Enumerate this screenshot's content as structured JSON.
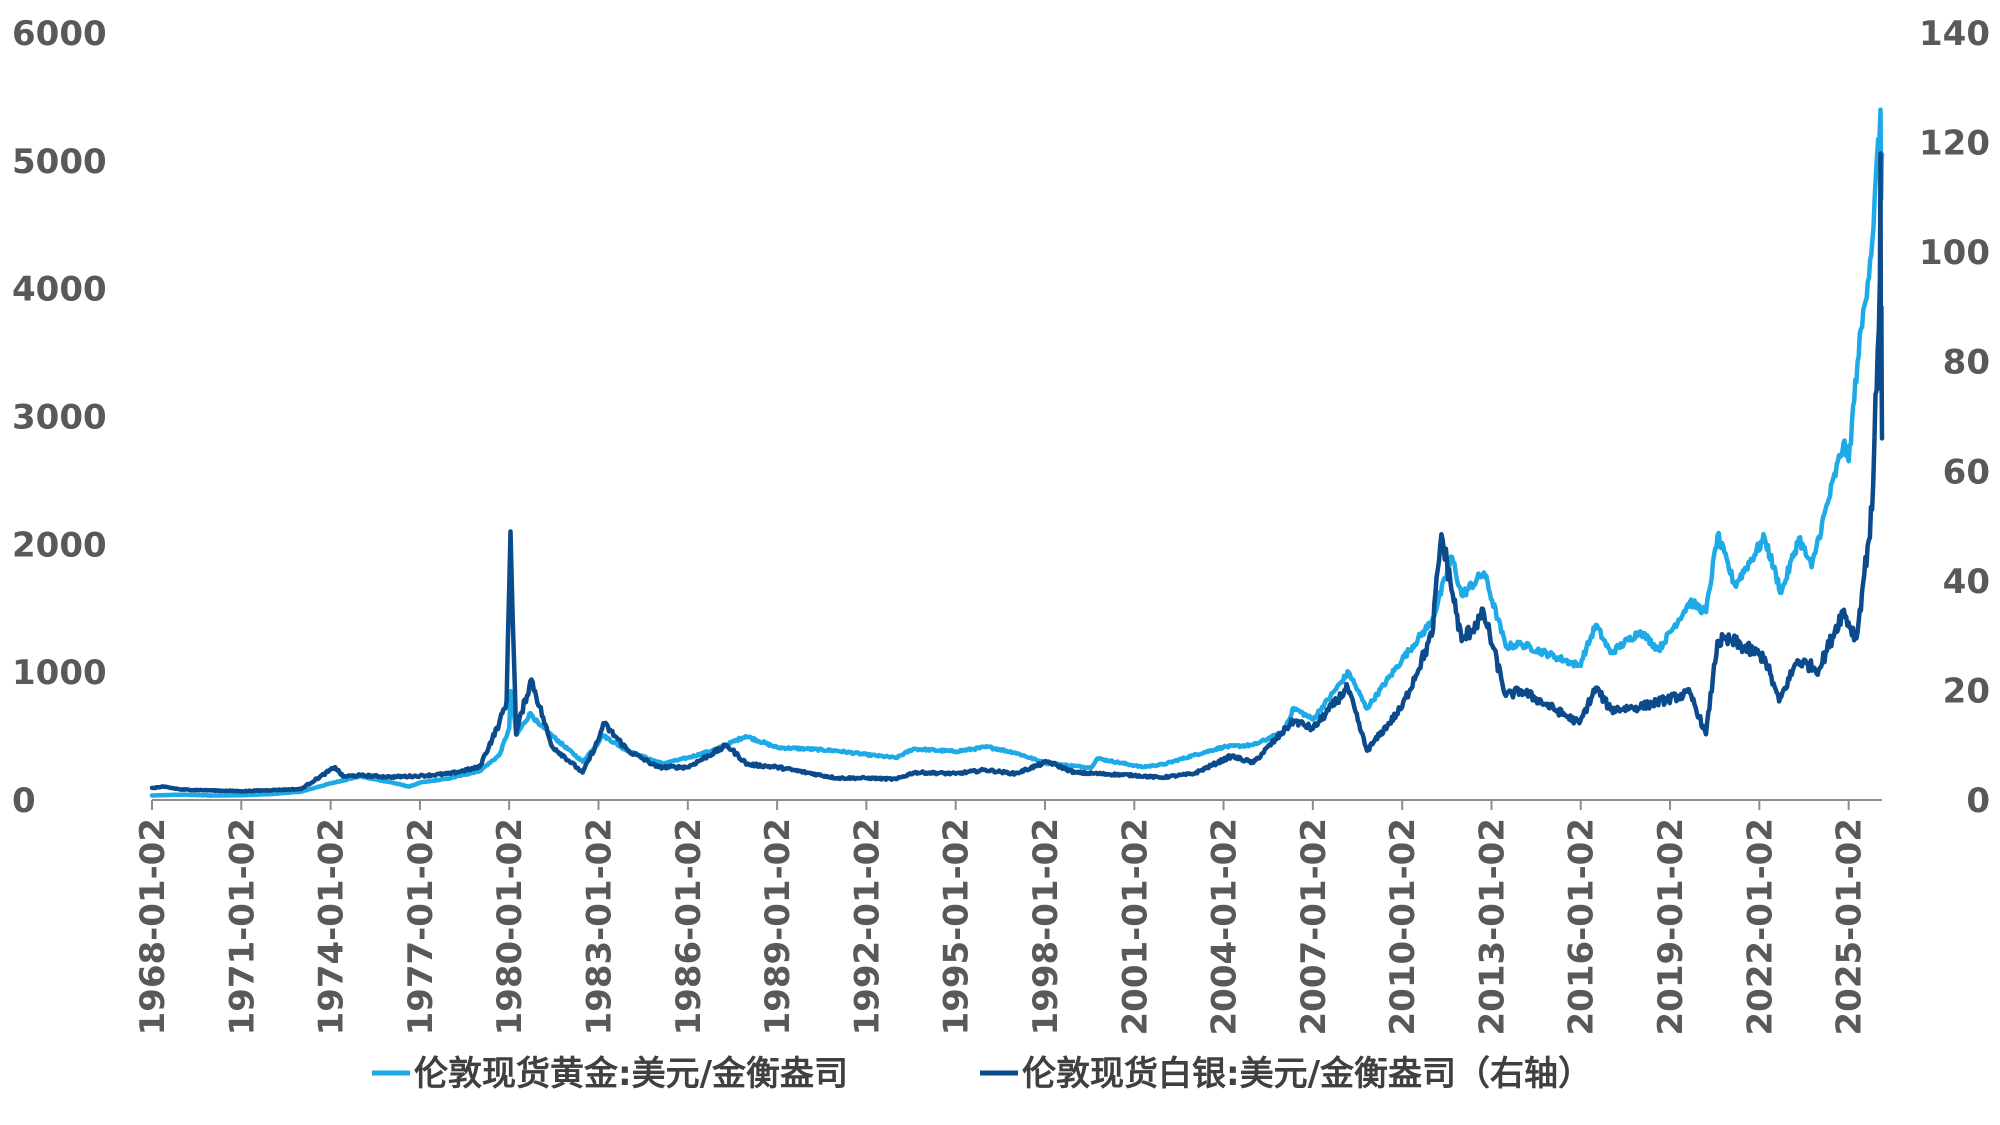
{
  "chart_data": {
    "type": "line",
    "x_type": "date",
    "x_ticks": [
      "1968-01-02",
      "1971-01-02",
      "1974-01-02",
      "1977-01-02",
      "1980-01-02",
      "1983-01-02",
      "1986-01-02",
      "1989-01-02",
      "1992-01-02",
      "1995-01-02",
      "1998-01-02",
      "2001-01-02",
      "2004-01-02",
      "2007-01-02",
      "2010-01-02",
      "2013-01-02",
      "2016-01-02",
      "2019-01-02",
      "2022-01-02",
      "2025-01-02"
    ],
    "xlim": [
      "1968-01-02",
      "2026-02-15"
    ],
    "ylim_left": [
      0,
      6000
    ],
    "ylim_right": [
      0,
      140
    ],
    "y_ticks_left": [
      0,
      1000,
      2000,
      3000,
      4000,
      5000,
      6000
    ],
    "y_ticks_right": [
      0,
      20,
      40,
      60,
      80,
      100,
      120,
      140
    ],
    "grid": false,
    "legend_position": "bottom",
    "series": [
      {
        "name": "伦敦现货黄金:美元/金衡盎司",
        "axis": "left",
        "color": "#1EAAE6",
        "points": [
          [
            "1968-01-02",
            35
          ],
          [
            "1969-01-02",
            42
          ],
          [
            "1970-01-02",
            35
          ],
          [
            "1971-01-02",
            37
          ],
          [
            "1972-01-02",
            46
          ],
          [
            "1973-01-02",
            65
          ],
          [
            "1974-01-02",
            130
          ],
          [
            "1974-12-30",
            186
          ],
          [
            "1975-06-02",
            165
          ],
          [
            "1976-01-02",
            140
          ],
          [
            "1976-08-25",
            105
          ],
          [
            "1977-01-02",
            135
          ],
          [
            "1978-01-02",
            170
          ],
          [
            "1979-01-02",
            226
          ],
          [
            "1979-09-03",
            350
          ],
          [
            "1980-01-02",
            560
          ],
          [
            "1980-01-21",
            850
          ],
          [
            "1980-04-01",
            510
          ],
          [
            "1980-09-20",
            680
          ],
          [
            "1981-01-02",
            590
          ],
          [
            "1982-06-21",
            300
          ],
          [
            "1983-01-02",
            450
          ],
          [
            "1983-02-15",
            510
          ],
          [
            "1984-01-02",
            380
          ],
          [
            "1985-02-25",
            285
          ],
          [
            "1986-01-02",
            330
          ],
          [
            "1987-01-02",
            400
          ],
          [
            "1987-12-14",
            500
          ],
          [
            "1989-01-02",
            410
          ],
          [
            "1990-01-02",
            400
          ],
          [
            "1991-01-02",
            385
          ],
          [
            "1992-01-02",
            355
          ],
          [
            "1993-01-02",
            330
          ],
          [
            "1993-08-01",
            400
          ],
          [
            "1995-01-02",
            380
          ],
          [
            "1996-02-01",
            415
          ],
          [
            "1997-01-02",
            370
          ],
          [
            "1998-01-02",
            290
          ],
          [
            "1999-07-20",
            253
          ],
          [
            "1999-10-05",
            325
          ],
          [
            "2001-01-02",
            270
          ],
          [
            "2001-04-02",
            258
          ],
          [
            "2002-01-02",
            280
          ],
          [
            "2003-01-02",
            350
          ],
          [
            "2004-01-02",
            415
          ],
          [
            "2005-01-02",
            430
          ],
          [
            "2006-01-02",
            530
          ],
          [
            "2006-05-12",
            720
          ],
          [
            "2007-01-02",
            630
          ],
          [
            "2008-03-17",
            1000
          ],
          [
            "2008-10-24",
            715
          ],
          [
            "2010-01-02",
            1100
          ],
          [
            "2011-01-02",
            1400
          ],
          [
            "2011-09-06",
            1900
          ],
          [
            "2012-01-02",
            1600
          ],
          [
            "2012-10-02",
            1780
          ],
          [
            "2013-06-28",
            1200
          ],
          [
            "2014-01-02",
            1220
          ],
          [
            "2015-12-17",
            1050
          ],
          [
            "2016-07-06",
            1370
          ],
          [
            "2017-01-02",
            1150
          ],
          [
            "2018-01-02",
            1320
          ],
          [
            "2018-08-16",
            1175
          ],
          [
            "2019-09-04",
            1550
          ],
          [
            "2020-03-19",
            1470
          ],
          [
            "2020-08-07",
            2070
          ],
          [
            "2021-03-08",
            1680
          ],
          [
            "2022-03-08",
            2050
          ],
          [
            "2022-09-28",
            1620
          ],
          [
            "2023-05-04",
            2050
          ],
          [
            "2023-10-05",
            1820
          ],
          [
            "2024-01-02",
            2060
          ],
          [
            "2024-10-30",
            2790
          ],
          [
            "2025-01-02",
            2650
          ],
          [
            "2025-04-21",
            3430
          ],
          [
            "2025-10-20",
            4380
          ],
          [
            "2026-01-28",
            5400
          ],
          [
            "2026-02-05",
            4700
          ],
          [
            "2026-02-15",
            5050
          ]
        ]
      },
      {
        "name": "伦敦现货白银:美元/金衡盎司（右轴）",
        "axis": "right",
        "color": "#0B4A8B",
        "points": [
          [
            "1968-01-02",
            2.2
          ],
          [
            "1968-06-02",
            2.4
          ],
          [
            "1969-01-02",
            1.9
          ],
          [
            "1971-01-02",
            1.6
          ],
          [
            "1973-01-02",
            2.0
          ],
          [
            "1974-02-26",
            6.0
          ],
          [
            "1974-06-02",
            4.3
          ],
          [
            "1975-01-02",
            4.5
          ],
          [
            "1976-01-02",
            4.2
          ],
          [
            "1977-01-02",
            4.4
          ],
          [
            "1978-01-02",
            4.8
          ],
          [
            "1979-01-02",
            6.0
          ],
          [
            "1979-09-01",
            14.0
          ],
          [
            "1979-12-01",
            18.0
          ],
          [
            "1980-01-18",
            49.0
          ],
          [
            "1980-03-27",
            12.0
          ],
          [
            "1980-06-02",
            16.0
          ],
          [
            "1980-10-02",
            22.0
          ],
          [
            "1981-06-02",
            10.0
          ],
          [
            "1982-06-21",
            5.0
          ],
          [
            "1983-01-02",
            11.0
          ],
          [
            "1983-03-02",
            14.0
          ],
          [
            "1984-01-02",
            9.0
          ],
          [
            "1985-01-02",
            6.0
          ],
          [
            "1986-01-02",
            6.0
          ],
          [
            "1987-04-27",
            10.0
          ],
          [
            "1988-01-02",
            6.5
          ],
          [
            "1989-01-02",
            6.0
          ],
          [
            "1990-01-02",
            5.0
          ],
          [
            "1991-01-02",
            4.0
          ],
          [
            "1992-01-02",
            4.0
          ],
          [
            "1993-01-02",
            3.8
          ],
          [
            "1993-08-02",
            5.0
          ],
          [
            "1994-01-02",
            5.0
          ],
          [
            "1995-01-02",
            4.8
          ],
          [
            "1996-01-02",
            5.5
          ],
          [
            "1997-01-02",
            4.8
          ],
          [
            "1998-02-05",
            7.0
          ],
          [
            "1999-01-02",
            5.0
          ],
          [
            "2001-01-02",
            4.5
          ],
          [
            "2001-11-20",
            4.1
          ],
          [
            "2003-01-02",
            4.8
          ],
          [
            "2004-04-06",
            8.0
          ],
          [
            "2005-01-02",
            6.8
          ],
          [
            "2006-05-12",
            14.5
          ],
          [
            "2007-01-02",
            13.0
          ],
          [
            "2008-03-05",
            20.5
          ],
          [
            "2008-10-27",
            9.0
          ],
          [
            "2010-01-02",
            17.0
          ],
          [
            "2011-01-02",
            30.0
          ],
          [
            "2011-04-28",
            48.5
          ],
          [
            "2012-01-02",
            29.0
          ],
          [
            "2012-10-02",
            34.0
          ],
          [
            "2013-06-28",
            19.0
          ],
          [
            "2014-01-02",
            20.0
          ],
          [
            "2015-12-17",
            14.0
          ],
          [
            "2016-07-06",
            20.5
          ],
          [
            "2017-01-02",
            16.5
          ],
          [
            "2018-01-02",
            17.0
          ],
          [
            "2019-09-04",
            19.5
          ],
          [
            "2020-03-18",
            12.0
          ],
          [
            "2020-08-07",
            29.0
          ],
          [
            "2021-02-01",
            29.0
          ],
          [
            "2022-03-08",
            26.0
          ],
          [
            "2022-09-01",
            18.0
          ],
          [
            "2023-04-14",
            25.5
          ],
          [
            "2024-01-02",
            23.8
          ],
          [
            "2024-10-22",
            34.5
          ],
          [
            "2025-04-07",
            29.5
          ],
          [
            "2025-10-17",
            53.0
          ],
          [
            "2026-01-20",
            95.0
          ],
          [
            "2026-01-28",
            118.0
          ],
          [
            "2026-02-02",
            75.0
          ],
          [
            "2026-02-08",
            90.0
          ],
          [
            "2026-02-15",
            66.0
          ]
        ]
      }
    ]
  }
}
